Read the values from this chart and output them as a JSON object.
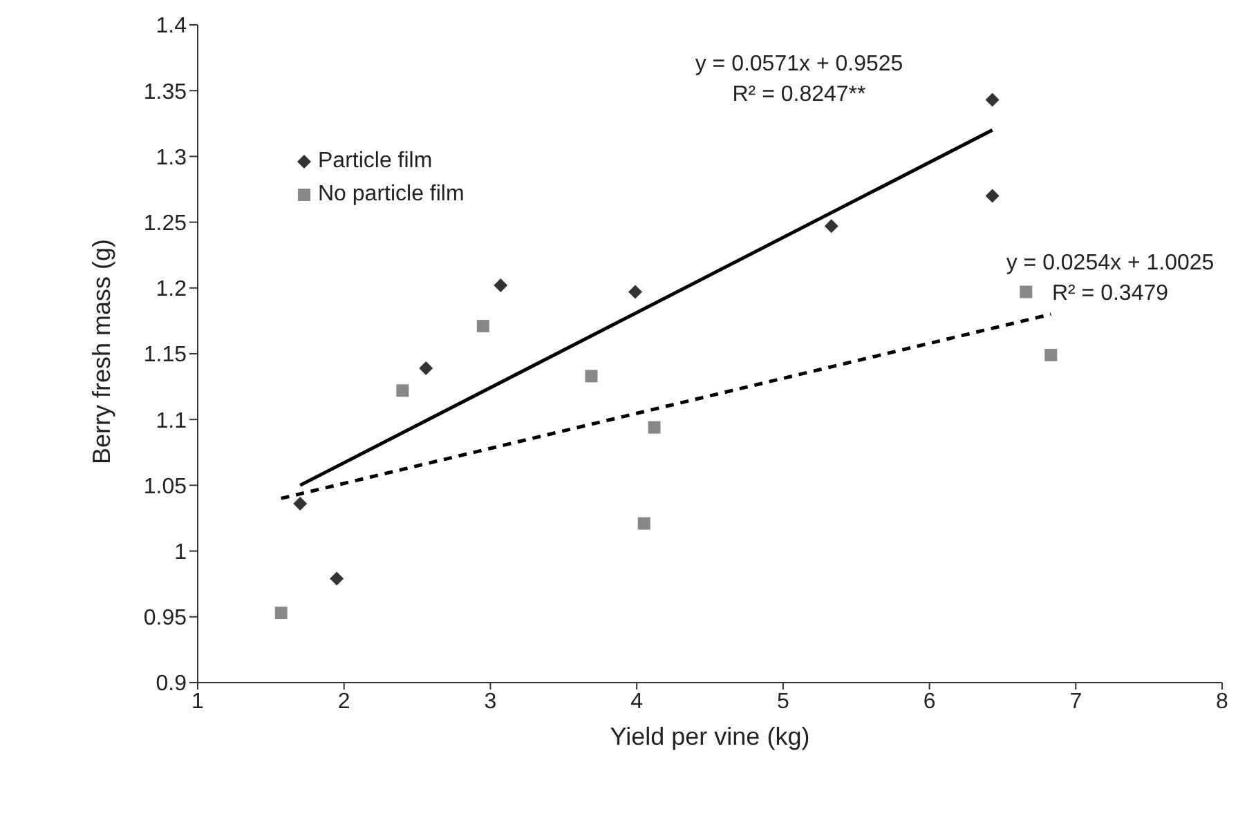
{
  "chart_data": {
    "type": "scatter",
    "xlabel": "Yield per vine (kg)",
    "ylabel": "Berry fresh mass (g)",
    "xlim": [
      1,
      8
    ],
    "xticks": [
      1,
      2,
      3,
      4,
      5,
      6,
      7,
      8
    ],
    "ylim": [
      0.9,
      1.4
    ],
    "yticks": [
      0.9,
      0.95,
      1,
      1.05,
      1.1,
      1.15,
      1.2,
      1.25,
      1.3,
      1.35,
      1.4
    ],
    "grid": false,
    "legend": "top left",
    "series": [
      {
        "name": "Particle film",
        "marker": "diamond",
        "color": "#333333",
        "x": [
          1.7,
          1.95,
          2.56,
          3.07,
          3.99,
          5.33,
          6.43,
          6.43
        ],
        "values": [
          1.036,
          0.979,
          1.139,
          1.202,
          1.197,
          1.247,
          1.343,
          1.27
        ]
      },
      {
        "name": "No particle film",
        "marker": "square",
        "color": "#888888",
        "x": [
          1.57,
          2.4,
          2.95,
          3.69,
          4.05,
          4.12,
          6.66,
          6.83
        ],
        "values": [
          0.953,
          1.122,
          1.171,
          1.133,
          1.021,
          1.094,
          1.197,
          1.149
        ]
      },
      {
        "type": "line",
        "marker": "none",
        "line_style": "solid",
        "color": "#000000",
        "x": [
          1.7,
          6.43
        ],
        "values": [
          1.05,
          1.32
        ]
      },
      {
        "type": "line",
        "marker": "none",
        "line_style": "dashed",
        "color": "#000000",
        "x": [
          1.57,
          6.83
        ],
        "values": [
          1.04,
          1.18
        ]
      }
    ],
    "annotations": [
      "y = 0.0571x + 0.9525\nR² = 0.8247**",
      "y = 0.0254x + 1.0025\nR² = 0.3479"
    ]
  }
}
